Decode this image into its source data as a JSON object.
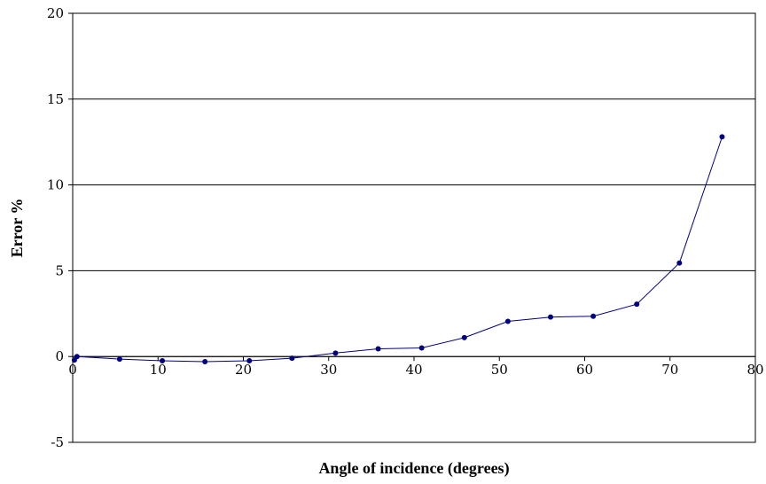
{
  "chart_data": {
    "type": "line",
    "title": "",
    "xlabel": "Angle of incidence (degrees)",
    "ylabel": "Error %",
    "xlim": [
      0,
      80
    ],
    "ylim": [
      -5,
      20
    ],
    "x_ticks": [
      "0",
      "10",
      "20",
      "30",
      "40",
      "50",
      "60",
      "70",
      "80"
    ],
    "y_ticks": [
      "-5",
      "0",
      "5",
      "10",
      "15",
      "20"
    ],
    "grid": "horizontal major gridlines",
    "legend": "none",
    "series": [
      {
        "color": "#000080",
        "points": [
          [
            0.2,
            -0.2
          ],
          [
            0.5,
            0.0
          ],
          [
            5.5,
            -0.15
          ],
          [
            10.5,
            -0.25
          ],
          [
            15.5,
            -0.3
          ],
          [
            20.7,
            -0.25
          ],
          [
            25.7,
            -0.1
          ],
          [
            30.8,
            0.2
          ],
          [
            35.8,
            0.45
          ],
          [
            40.9,
            0.5
          ],
          [
            45.9,
            1.1
          ],
          [
            51.0,
            2.05
          ],
          [
            56.0,
            2.3
          ],
          [
            61.0,
            2.35
          ],
          [
            66.1,
            3.05
          ],
          [
            71.1,
            5.45
          ],
          [
            76.1,
            12.8
          ]
        ]
      }
    ]
  }
}
